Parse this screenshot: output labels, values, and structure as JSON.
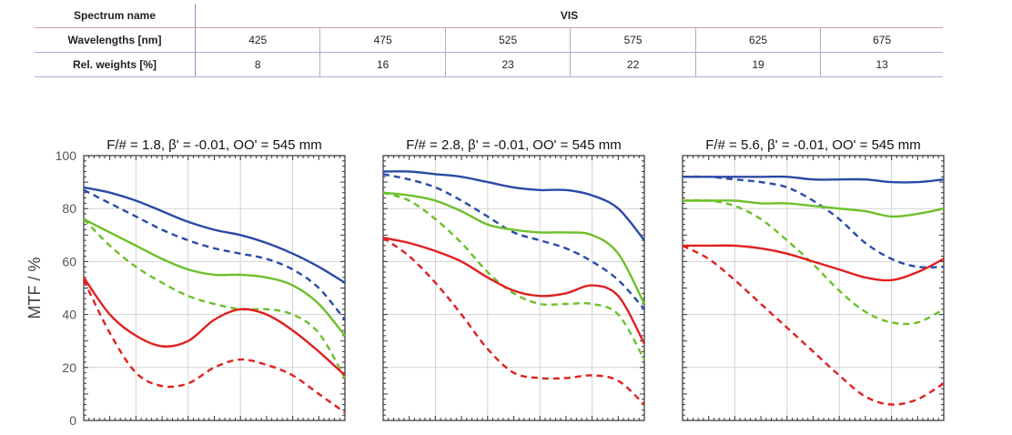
{
  "table": {
    "spectrum_label": "Spectrum name",
    "spectrum_value": "VIS",
    "wavelengths_label": "Wavelengths [nm]",
    "wavelengths": [
      "425",
      "475",
      "525",
      "575",
      "625",
      "675"
    ],
    "weights_label": "Rel. weights [%]",
    "weights": [
      "8",
      "16",
      "23",
      "22",
      "19",
      "13"
    ]
  },
  "chart_data": [
    {
      "type": "line",
      "title": "F/# = 1.8, β' = -0.01, OO' = 545 mm",
      "ylabel": "MTF / %",
      "ylim": [
        0,
        100
      ],
      "xlim": [
        0,
        1
      ],
      "yticks": [
        0,
        20,
        40,
        60,
        80,
        100
      ],
      "grid": true,
      "series": [
        {
          "color": "#2a4aa6",
          "style": "solid",
          "x": [
            0,
            0.1,
            0.2,
            0.3,
            0.4,
            0.5,
            0.6,
            0.7,
            0.8,
            0.9,
            1.0
          ],
          "y": [
            88,
            86,
            83,
            79,
            75,
            72,
            70,
            67,
            63,
            58,
            52
          ]
        },
        {
          "color": "#2a4aa6",
          "style": "dashed",
          "x": [
            0,
            0.1,
            0.2,
            0.3,
            0.4,
            0.5,
            0.6,
            0.7,
            0.8,
            0.9,
            1.0
          ],
          "y": [
            87,
            82,
            77,
            72,
            68,
            65,
            63,
            61,
            57,
            50,
            38
          ]
        },
        {
          "color": "#6cc02a",
          "style": "solid",
          "x": [
            0,
            0.1,
            0.2,
            0.3,
            0.4,
            0.5,
            0.6,
            0.7,
            0.8,
            0.9,
            1.0
          ],
          "y": [
            76,
            71,
            66,
            61,
            57,
            55,
            55,
            54,
            51,
            44,
            32
          ]
        },
        {
          "color": "#6cc02a",
          "style": "dashed",
          "x": [
            0,
            0.1,
            0.2,
            0.3,
            0.4,
            0.5,
            0.6,
            0.7,
            0.8,
            0.9,
            1.0
          ],
          "y": [
            76,
            66,
            58,
            52,
            47,
            44,
            42,
            42,
            40,
            33,
            16
          ]
        },
        {
          "color": "#e02020",
          "style": "solid",
          "x": [
            0,
            0.1,
            0.2,
            0.3,
            0.4,
            0.5,
            0.6,
            0.7,
            0.8,
            0.9,
            1.0
          ],
          "y": [
            54,
            40,
            32,
            28,
            30,
            38,
            42,
            40,
            34,
            26,
            17
          ]
        },
        {
          "color": "#e02020",
          "style": "dashed",
          "x": [
            0,
            0.1,
            0.2,
            0.3,
            0.4,
            0.5,
            0.6,
            0.7,
            0.8,
            0.9,
            1.0
          ],
          "y": [
            53,
            33,
            18,
            13,
            14,
            20,
            23,
            21,
            17,
            10,
            3
          ]
        }
      ]
    },
    {
      "type": "line",
      "title": "F/# = 2.8, β' = -0.01, OO' = 545 mm",
      "ylim": [
        0,
        100
      ],
      "xlim": [
        0,
        1
      ],
      "grid": true,
      "series": [
        {
          "color": "#2a4aa6",
          "style": "solid",
          "x": [
            0,
            0.1,
            0.2,
            0.3,
            0.4,
            0.5,
            0.6,
            0.7,
            0.8,
            0.9,
            1.0
          ],
          "y": [
            94,
            94,
            93,
            92,
            90,
            88,
            87,
            87,
            85,
            80,
            68
          ]
        },
        {
          "color": "#2a4aa6",
          "style": "dashed",
          "x": [
            0,
            0.1,
            0.2,
            0.3,
            0.4,
            0.5,
            0.6,
            0.7,
            0.8,
            0.9,
            1.0
          ],
          "y": [
            93,
            91,
            88,
            83,
            77,
            71,
            68,
            65,
            60,
            53,
            42
          ]
        },
        {
          "color": "#6cc02a",
          "style": "solid",
          "x": [
            0,
            0.1,
            0.2,
            0.3,
            0.4,
            0.5,
            0.6,
            0.7,
            0.8,
            0.9,
            1.0
          ],
          "y": [
            86,
            85,
            83,
            79,
            74,
            72,
            71,
            71,
            70,
            63,
            44
          ]
        },
        {
          "color": "#6cc02a",
          "style": "dashed",
          "x": [
            0,
            0.1,
            0.2,
            0.3,
            0.4,
            0.5,
            0.6,
            0.7,
            0.8,
            0.9,
            1.0
          ],
          "y": [
            86,
            83,
            76,
            67,
            56,
            48,
            44,
            44,
            44,
            40,
            23
          ]
        },
        {
          "color": "#e02020",
          "style": "solid",
          "x": [
            0,
            0.1,
            0.2,
            0.3,
            0.4,
            0.5,
            0.6,
            0.7,
            0.8,
            0.9,
            1.0
          ],
          "y": [
            69,
            67,
            64,
            60,
            54,
            49,
            47,
            48,
            51,
            47,
            29
          ]
        },
        {
          "color": "#e02020",
          "style": "dashed",
          "x": [
            0,
            0.1,
            0.2,
            0.3,
            0.4,
            0.5,
            0.6,
            0.7,
            0.8,
            0.9,
            1.0
          ],
          "y": [
            69,
            62,
            52,
            40,
            27,
            18,
            16,
            16,
            17,
            15,
            6
          ]
        }
      ]
    },
    {
      "type": "line",
      "title": "F/# = 5.6, β' = -0.01, OO' = 545 mm",
      "ylim": [
        0,
        100
      ],
      "xlim": [
        0,
        1
      ],
      "grid": true,
      "series": [
        {
          "color": "#2a4aa6",
          "style": "solid",
          "x": [
            0,
            0.1,
            0.2,
            0.3,
            0.4,
            0.5,
            0.6,
            0.7,
            0.8,
            0.9,
            1.0
          ],
          "y": [
            92,
            92,
            92,
            92,
            92,
            91,
            91,
            91,
            90,
            90,
            91
          ]
        },
        {
          "color": "#2a4aa6",
          "style": "dashed",
          "x": [
            0,
            0.1,
            0.2,
            0.3,
            0.4,
            0.5,
            0.6,
            0.7,
            0.8,
            0.9,
            1.0
          ],
          "y": [
            92,
            92,
            91,
            90,
            88,
            83,
            76,
            67,
            61,
            58,
            58
          ]
        },
        {
          "color": "#6cc02a",
          "style": "solid",
          "x": [
            0,
            0.1,
            0.2,
            0.3,
            0.4,
            0.5,
            0.6,
            0.7,
            0.8,
            0.9,
            1.0
          ],
          "y": [
            83,
            83,
            83,
            82,
            82,
            81,
            80,
            79,
            77,
            78,
            80
          ]
        },
        {
          "color": "#6cc02a",
          "style": "dashed",
          "x": [
            0,
            0.1,
            0.2,
            0.3,
            0.4,
            0.5,
            0.6,
            0.7,
            0.8,
            0.9,
            1.0
          ],
          "y": [
            83,
            83,
            81,
            76,
            68,
            59,
            49,
            41,
            37,
            37,
            42
          ]
        },
        {
          "color": "#e02020",
          "style": "solid",
          "x": [
            0,
            0.1,
            0.2,
            0.3,
            0.4,
            0.5,
            0.6,
            0.7,
            0.8,
            0.9,
            1.0
          ],
          "y": [
            66,
            66,
            66,
            65,
            63,
            60,
            57,
            54,
            53,
            56,
            61
          ]
        },
        {
          "color": "#e02020",
          "style": "dashed",
          "x": [
            0,
            0.1,
            0.2,
            0.3,
            0.4,
            0.5,
            0.6,
            0.7,
            0.8,
            0.9,
            1.0
          ],
          "y": [
            66,
            61,
            53,
            44,
            35,
            26,
            17,
            9,
            6,
            8,
            14
          ]
        }
      ]
    }
  ]
}
